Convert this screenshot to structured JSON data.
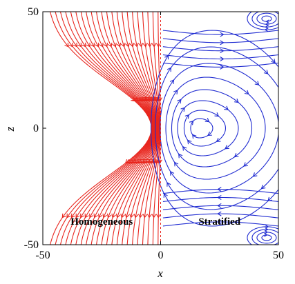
{
  "chart_data": {
    "type": "streamline",
    "xlabel": "x",
    "ylabel": "z",
    "xlim": [
      -50,
      50
    ],
    "ylim": [
      -50,
      50
    ],
    "xticks": [
      -50,
      0,
      50
    ],
    "yticks": [
      -50,
      0,
      50
    ],
    "grid": false,
    "regions": [
      {
        "name": "Homogeneous",
        "x_range": [
          -50,
          0
        ],
        "color": "#e8241c",
        "flow_direction": "downward, converging toward origin"
      },
      {
        "name": "Stratified",
        "x_range": [
          0,
          50
        ],
        "color": "#1f2bd1",
        "flow_direction": "closed recirculating cells; clockwise eddy centered near x=16, z=0",
        "eddy_centers": [
          {
            "x": 16,
            "z": 0
          },
          {
            "x": 45,
            "z": 47
          },
          {
            "x": 45,
            "z": -47
          }
        ]
      }
    ],
    "annotations": [
      {
        "text": "Homogeneous",
        "x": -25,
        "z": -40
      },
      {
        "text": "Stratified",
        "x": 25,
        "z": -40
      }
    ]
  }
}
